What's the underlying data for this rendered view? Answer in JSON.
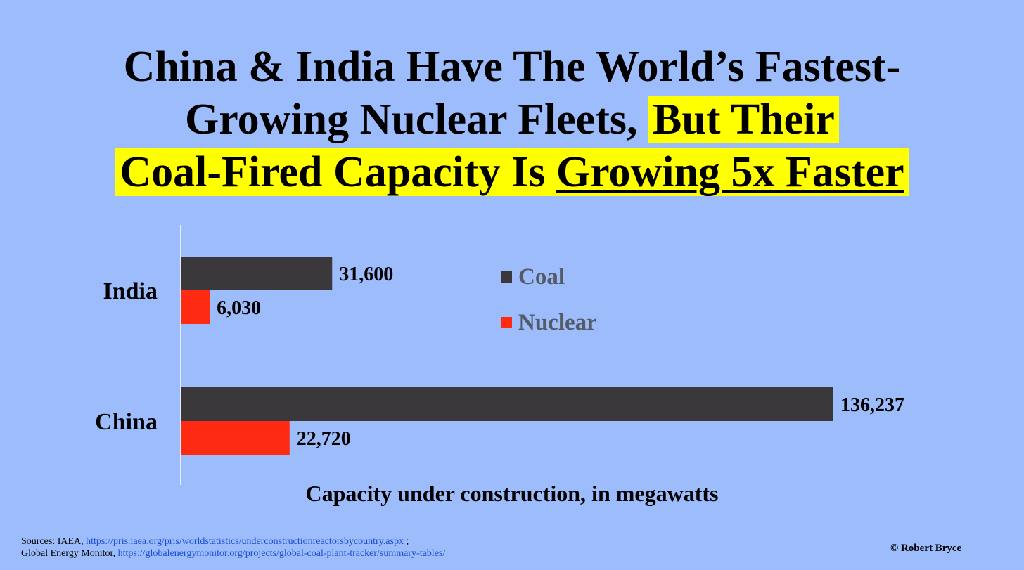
{
  "title": {
    "line1": "China & India Have The World’s Fastest-",
    "line2_plain": "Growing Nuclear Fleets, ",
    "line2_highlight": "But Their",
    "line3_plain": "Coal-Fired Capacity Is ",
    "line3_underlined": "Growing 5x Faster"
  },
  "chart_data": {
    "type": "bar",
    "orientation": "horizontal",
    "categories": [
      "India",
      "China"
    ],
    "series": [
      {
        "name": "Coal",
        "color": "#3b383c",
        "values": [
          31600,
          136237
        ],
        "labels": [
          "31,600",
          "136,237"
        ]
      },
      {
        "name": "Nuclear",
        "color": "#ff2a12",
        "values": [
          6030,
          22720
        ],
        "labels": [
          "6,030",
          "22,720"
        ]
      }
    ],
    "xlabel": "Capacity under construction, in megawatts",
    "xlim": [
      0,
      136237
    ],
    "grid": false,
    "legend": "center"
  },
  "sources": {
    "prefix": "Sources: IAEA, ",
    "iaea_link": "https://pris.iaea.org/pris/worldstatistics/underconstructionreactorsbycountry.aspx",
    "sep": " ;",
    "gem_prefix": "Global Energy Monitor, ",
    "gem_link": "https://globalenergymonitor.org/projects/global-coal-plant-tracker/summary-tables/"
  },
  "copyright": "© Robert Bryce"
}
